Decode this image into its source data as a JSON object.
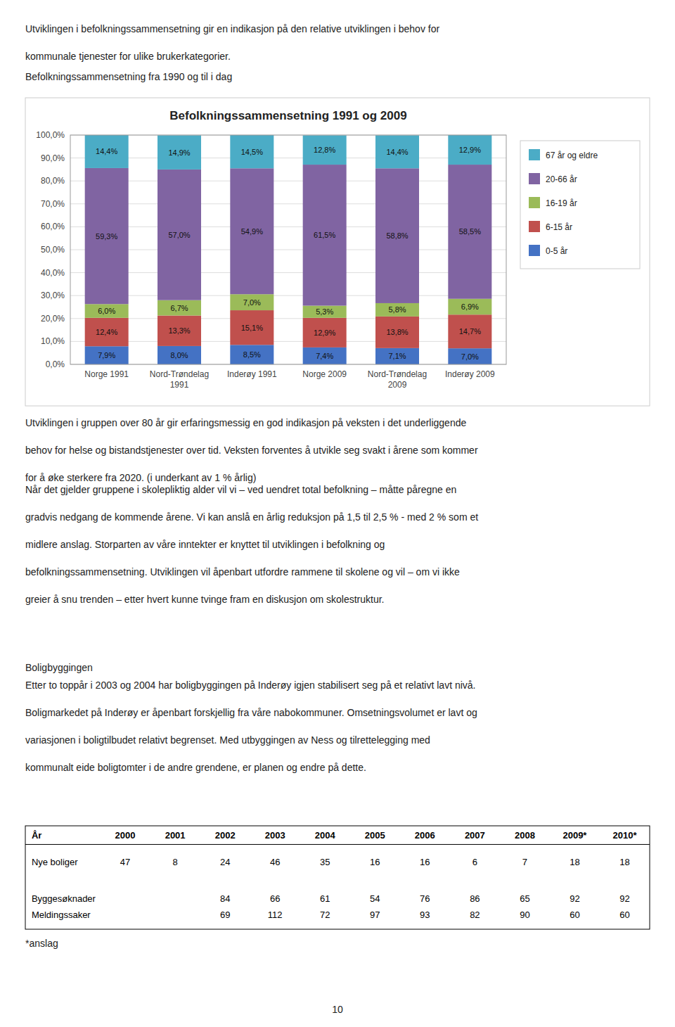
{
  "chart_data": {
    "type": "bar",
    "title": "Befolkningssammensetning 1991 og 2009",
    "stacked": true,
    "data_labels": true,
    "grid": true,
    "legend": "right",
    "categories": [
      "Norge 1991",
      "Nord-Trøndelag\n1991",
      "Inderøy 1991",
      "Norge 2009",
      "Nord-Trøndelag\n2009",
      "Inderøy 2009"
    ],
    "series": [
      {
        "name": "0-5 år",
        "color": "#4472C4",
        "values": [
          7.9,
          8.0,
          8.5,
          7.4,
          7.1,
          7.0
        ],
        "value_labels": [
          "7,9%",
          "8,0%",
          "8,5%",
          "7,4%",
          "7,1%",
          "7,0%"
        ]
      },
      {
        "name": "6-15 år",
        "color": "#C0504D",
        "values": [
          12.4,
          13.3,
          15.1,
          12.9,
          13.8,
          14.7
        ],
        "value_labels": [
          "12,4%",
          "13,3%",
          "15,1%",
          "12,9%",
          "13,8%",
          "14,7%"
        ]
      },
      {
        "name": "16-19 år",
        "color": "#9BBB59",
        "values": [
          6.0,
          6.7,
          7.0,
          5.3,
          5.8,
          6.9
        ],
        "value_labels": [
          "6,0%",
          "6,7%",
          "7,0%",
          "5,3%",
          "5,8%",
          "6,9%"
        ]
      },
      {
        "name": "20-66 år",
        "color": "#8064A2",
        "values": [
          59.3,
          57.0,
          54.9,
          61.5,
          58.8,
          58.5
        ],
        "value_labels": [
          "59,3%",
          "57,0%",
          "54,9%",
          "61,5%",
          "58,8%",
          "58,5%"
        ]
      },
      {
        "name": "67 år og eldre",
        "color": "#4BACC6",
        "values": [
          14.4,
          14.9,
          14.5,
          12.8,
          14.4,
          12.9
        ],
        "value_labels": [
          "14,4%",
          "14,9%",
          "14,5%",
          "12,8%",
          "14,4%",
          "12,9%"
        ]
      }
    ],
    "ylim": [
      0,
      100
    ],
    "yticks": [
      {
        "value": 0,
        "label": "0,0%"
      },
      {
        "value": 10,
        "label": "10,0%"
      },
      {
        "value": 20,
        "label": "20,0%"
      },
      {
        "value": 30,
        "label": "30,0%"
      },
      {
        "value": 40,
        "label": "40,0%"
      },
      {
        "value": 50,
        "label": "50,0%"
      },
      {
        "value": 60,
        "label": "60,0%"
      },
      {
        "value": 70,
        "label": "70,0%"
      },
      {
        "value": 80,
        "label": "80,0%"
      },
      {
        "value": 90,
        "label": "90,0%"
      },
      {
        "value": 100,
        "label": "100,0%"
      }
    ]
  },
  "page": {
    "paragraphs": [
      [
        "Utviklingen i befolkningssammensetning gir en indikasjon på den relative utviklingen i behov for",
        "kommunale tjenester for ulike brukerkategorier."
      ],
      [
        "Befolkningssammensetning fra 1990 og til i dag"
      ],
      [
        "Utviklingen i gruppen over 80 år gir erfaringsmessig en god indikasjon på veksten i det underliggende",
        "behov for helse og bistandstjenester over tid. Veksten forventes å utvikle seg svakt i årene som kommer",
        "for å øke sterkere fra 2020. (i underkant av 1 % årlig)"
      ],
      [
        "Når det gjelder gruppene i skolepliktig alder vil vi – ved uendret total befolkning – måtte påregne en",
        "gradvis nedgang de kommende årene. Vi kan anslå en årlig reduksjon på 1,5 til 2,5 % - med 2 % som et",
        "midlere anslag. Storparten av våre inntekter er knyttet til utviklingen i befolkning og",
        "befolkningssammensetning. Utviklingen vil åpenbart utfordre rammene til skolene og vil – om vi ikke",
        "greier å snu trenden – etter hvert kunne tvinge fram en diskusjon om skolestruktur."
      ],
      [
        "Boligbyggingen"
      ],
      [
        "Etter to toppår i 2003 og 2004 har boligbyggingen på Inderøy igjen stabilisert seg på et relativt lavt nivå.",
        "Boligmarkedet på Inderøy er åpenbart forskjellig fra våre nabokommuner. Omsetningsvolumet er lavt og",
        "variasjonen i boligtilbudet relativt begrenset. Med utbyggingen av Ness og tilrettelegging med",
        "kommunalt eide boligtomter i de andre grendene, er planen og endre på dette."
      ]
    ],
    "table": {
      "headers": [
        "År",
        "2000",
        "2001",
        "2002",
        "2003",
        "2004",
        "2005",
        "2006",
        "2007",
        "2008",
        "2009*",
        "2010*"
      ],
      "rows": [
        {
          "label": "Nye boliger",
          "values": [
            47,
            8,
            24,
            46,
            35,
            16,
            16,
            6,
            7,
            18,
            18
          ]
        },
        {
          "label": "Byggesøknader",
          "values": [
            null,
            null,
            84,
            66,
            61,
            54,
            76,
            86,
            65,
            92,
            92
          ]
        },
        {
          "label": "Meldingssaker",
          "values": [
            null,
            null,
            69,
            112,
            72,
            97,
            93,
            82,
            90,
            60,
            60
          ]
        }
      ]
    },
    "footnote": "*anslag",
    "page_number": "10"
  }
}
